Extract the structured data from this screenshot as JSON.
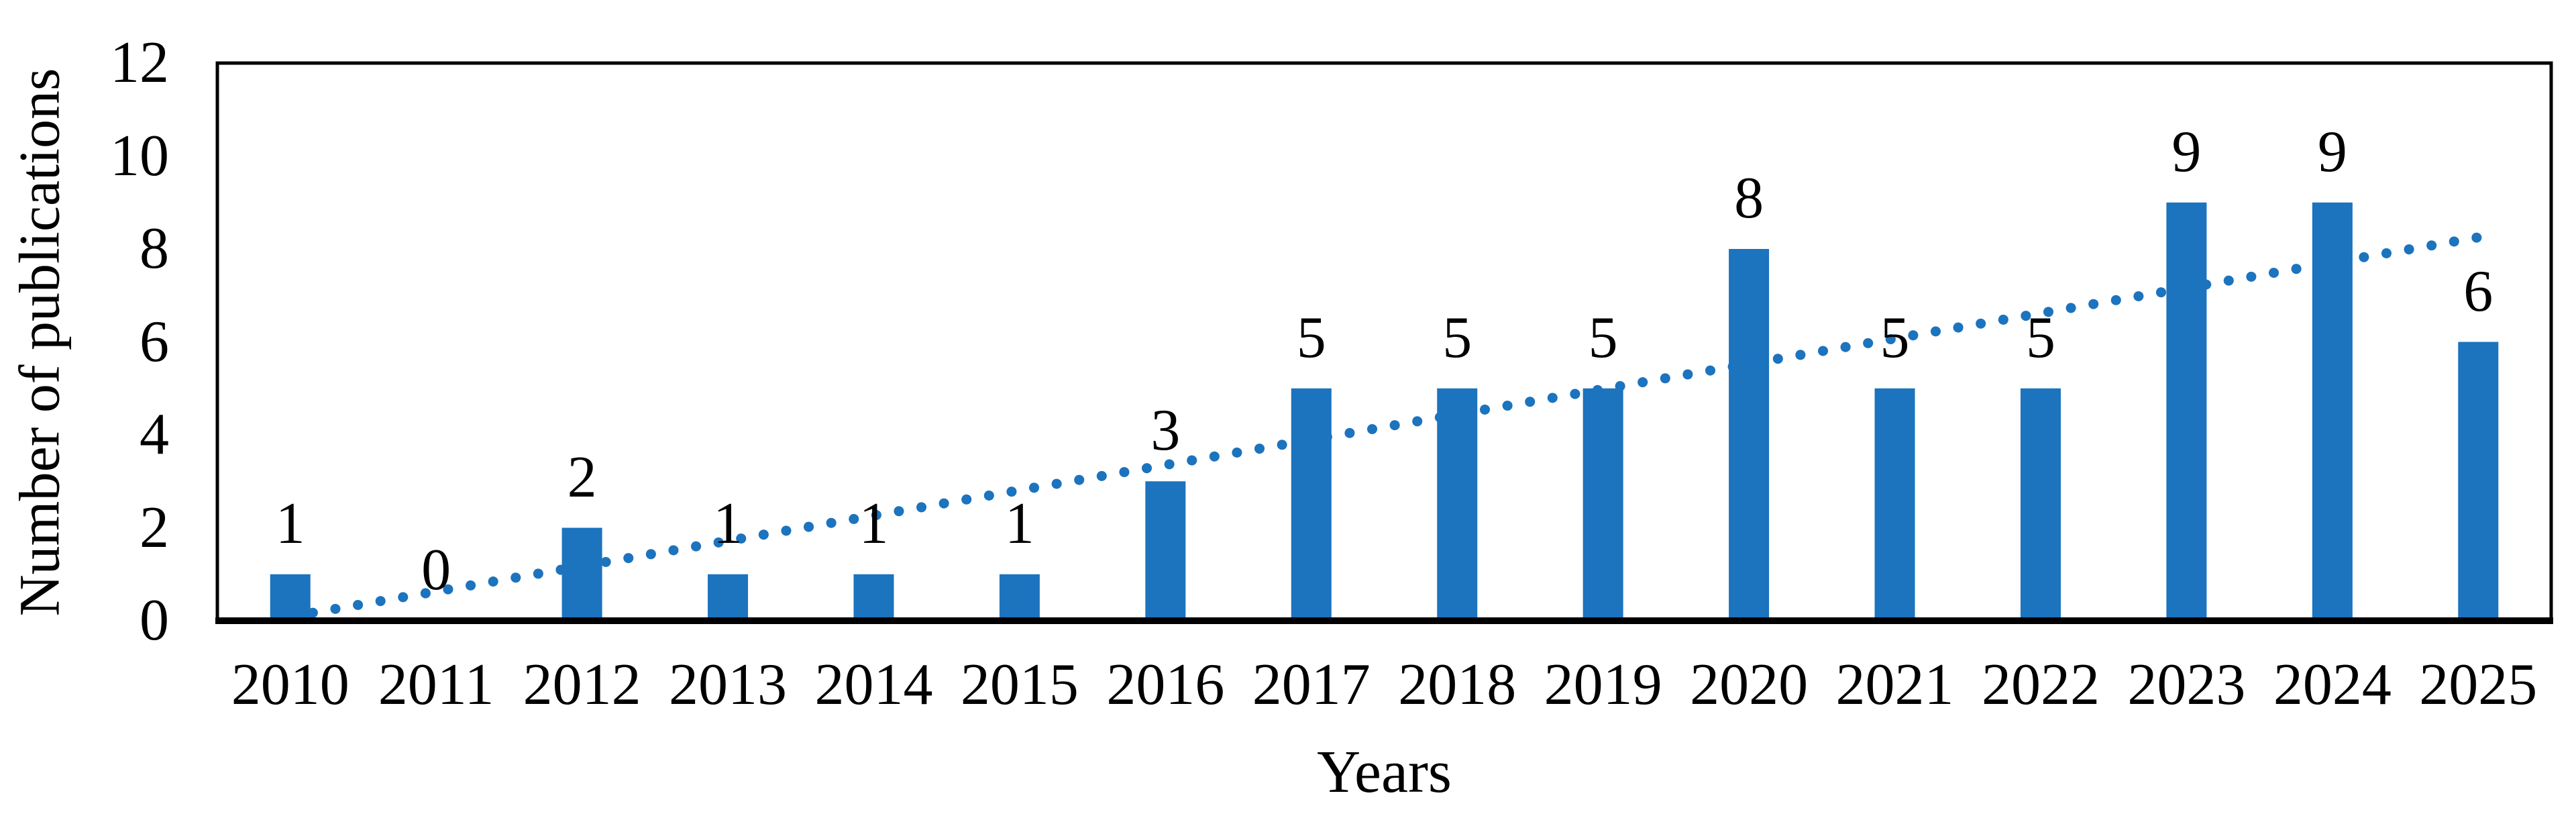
{
  "chart_data": {
    "type": "bar",
    "title": "",
    "categories": [
      "2010",
      "2011",
      "2012",
      "2013",
      "2014",
      "2015",
      "2016",
      "2017",
      "2018",
      "2019",
      "2020",
      "2021",
      "2022",
      "2023",
      "2024",
      "2025"
    ],
    "values": [
      1,
      0,
      2,
      1,
      1,
      1,
      3,
      5,
      5,
      5,
      8,
      5,
      5,
      9,
      9,
      6
    ],
    "xlabel": "Years",
    "ylabel": "Number of publications",
    "ylim": [
      0,
      12
    ],
    "yticks": [
      0,
      2,
      4,
      6,
      8,
      10,
      12
    ],
    "grid": false,
    "legend_position": "none",
    "data_labels_visible": true,
    "bar_color": "#1C73BE",
    "trendline": {
      "type": "linear",
      "style": "dotted",
      "color": "#1C73BE",
      "start_value": 0,
      "end_value": 8.25
    },
    "axis_color": "#000000",
    "text_color": "#000000"
  }
}
